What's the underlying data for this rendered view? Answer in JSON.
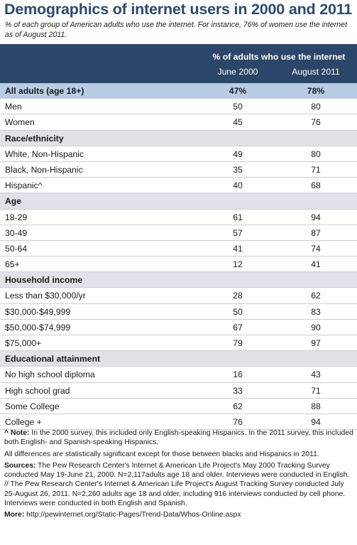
{
  "title": "Demographics of internet users in 2000 and 2011",
  "subtitle": "% of each group of American adults who use the internet. For instance, 76% of women use the internet as of August 2011.",
  "chart_data": {
    "type": "table",
    "spanning_header": "% of adults who use the internet",
    "columns": [
      "June 2000",
      "August 2011"
    ],
    "rows": [
      {
        "label": "All adults (age 18+)",
        "kind": "all",
        "values": [
          "47%",
          "78%"
        ]
      },
      {
        "label": "Men",
        "kind": "data",
        "values": [
          "50",
          "80"
        ]
      },
      {
        "label": "Women",
        "kind": "data",
        "values": [
          "45",
          "76"
        ]
      },
      {
        "label": "Race/ethnicity",
        "kind": "section",
        "values": [
          "",
          ""
        ]
      },
      {
        "label": "White, Non-Hispanic",
        "kind": "data",
        "values": [
          "49",
          "80"
        ]
      },
      {
        "label": "Black, Non-Hispanic",
        "kind": "data",
        "values": [
          "35",
          "71"
        ]
      },
      {
        "label": "Hispanic^",
        "kind": "data",
        "values": [
          "40",
          "68"
        ]
      },
      {
        "label": "Age",
        "kind": "section",
        "values": [
          "",
          ""
        ]
      },
      {
        "label": "18-29",
        "kind": "data",
        "values": [
          "61",
          "94"
        ]
      },
      {
        "label": "30-49",
        "kind": "data",
        "values": [
          "57",
          "87"
        ]
      },
      {
        "label": "50-64",
        "kind": "data",
        "values": [
          "41",
          "74"
        ]
      },
      {
        "label": "65+",
        "kind": "data",
        "values": [
          "12",
          "41"
        ]
      },
      {
        "label": "Household income",
        "kind": "section",
        "values": [
          "",
          ""
        ]
      },
      {
        "label": "Less than $30,000/yr",
        "kind": "data",
        "values": [
          "28",
          "62"
        ]
      },
      {
        "label": "$30,000-$49,999",
        "kind": "data",
        "values": [
          "50",
          "83"
        ]
      },
      {
        "label": "$50,000-$74,999",
        "kind": "data",
        "values": [
          "67",
          "90"
        ]
      },
      {
        "label": "$75,000+",
        "kind": "data",
        "values": [
          "79",
          "97"
        ]
      },
      {
        "label": "Educational attainment",
        "kind": "section",
        "values": [
          "",
          ""
        ]
      },
      {
        "label": "No high school diploma",
        "kind": "data",
        "values": [
          "16",
          "43"
        ]
      },
      {
        "label": "High school grad",
        "kind": "data",
        "values": [
          "33",
          "71"
        ]
      },
      {
        "label": "Some College",
        "kind": "data",
        "values": [
          "62",
          "88"
        ]
      },
      {
        "label": "College +",
        "kind": "data",
        "values": [
          "76",
          "94"
        ]
      }
    ]
  },
  "notes": {
    "note_label": "^ Note:",
    "note_text": " In the 2000 survey, this included only English-speaking Hispanics. In the 2011 survey, this included both English- and Spanish-speaking Hispanics.",
    "significance": "All differences are statistically significant except for those between blacks and Hispanics in 2011.",
    "sources_label": "Sources:",
    "sources_text": " The Pew Research Center's Internet & American Life Project's May 2000 Tracking Survey conducted May 19-June 21, 2000. N=2,117adults age 18 and older. Interviews were conducted in English. // The Pew Research Center's Internet & American Life Project's August Tracking Survey conducted July 25-August 26, 2011. N=2,260 adults age 18 and older, including 916 interviews conducted by cell phone. Interviews were conducted in both English and Spanish.",
    "more_label": "More:",
    "more_text": " http://pewinternet.org/Static-Pages/Trend-Data/Whos-Online.aspx"
  }
}
